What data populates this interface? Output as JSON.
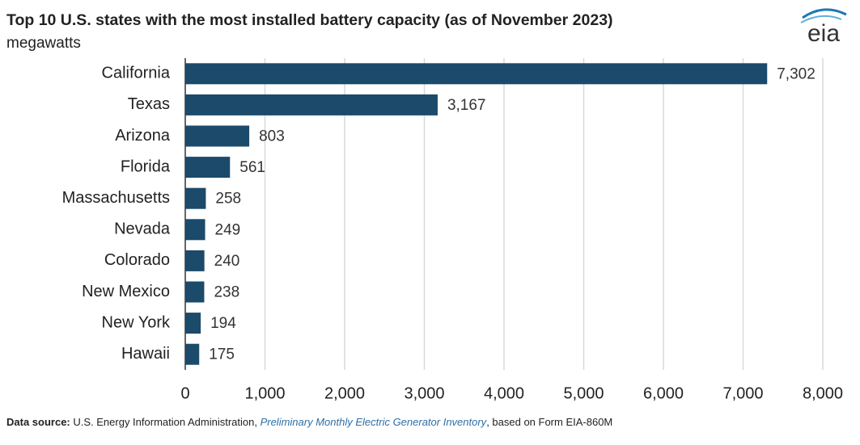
{
  "chart_data": {
    "type": "bar",
    "orientation": "horizontal",
    "title": "Top 10 U.S. states with the most installed battery capacity (as of November 2023)",
    "subtitle": "megawatts",
    "logo": "eia",
    "categories": [
      "California",
      "Texas",
      "Arizona",
      "Florida",
      "Massachusetts",
      "Nevada",
      "Colorado",
      "New Mexico",
      "New York",
      "Hawaii"
    ],
    "values": [
      7302,
      3167,
      803,
      561,
      258,
      249,
      240,
      238,
      194,
      175
    ],
    "value_labels": [
      "7,302",
      "3,167",
      "803",
      "561",
      "258",
      "249",
      "240",
      "238",
      "194",
      "175"
    ],
    "color": "#1b4a6b",
    "xlim": [
      0,
      8000
    ],
    "xticks": [
      0,
      {
        "value": 1000,
        "label": "1,000"
      },
      {
        "value": 2000,
        "label": "2,000"
      },
      {
        "value": 3000,
        "label": "3,000"
      },
      {
        "value": 4000,
        "label": "4,000"
      },
      {
        "value": 5000,
        "label": "5,000"
      },
      {
        "value": 6000,
        "label": "6,000"
      },
      {
        "value": 7000,
        "label": "7,000"
      },
      {
        "value": 8000,
        "label": "8,000"
      }
    ],
    "grid": true,
    "source": [
      "Data source:",
      " U.S. Energy Information Administration, ",
      "Preliminary Monthly Electric Generator Inventory",
      ", based on Form EIA-860M"
    ]
  }
}
